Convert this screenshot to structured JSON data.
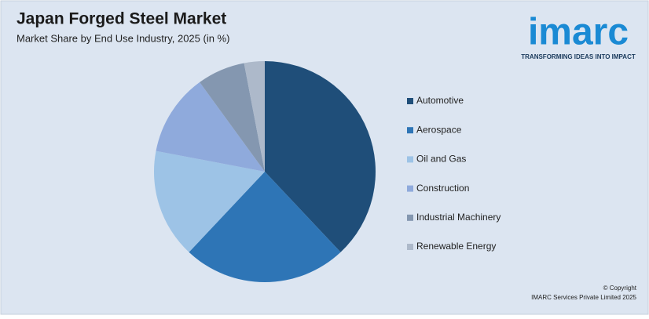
{
  "chart_data": {
    "type": "pie",
    "title": "Japan Forged Steel Market",
    "subtitle": "Market Share by End Use Industry, 2025 (in %)",
    "categories": [
      "Automotive",
      "Aerospace",
      "Oil and Gas",
      "Construction",
      "Industrial Machinery",
      "Renewable Energy"
    ],
    "values": [
      38,
      24,
      16,
      12,
      7,
      3
    ],
    "colors": [
      "#1f4e79",
      "#2e75b6",
      "#9dc3e6",
      "#8faadc",
      "#8497b0",
      "#adb9ca"
    ],
    "legend": "right"
  },
  "logo": {
    "name": "imarc",
    "tagline": "TRANSFORMING IDEAS INTO IMPACT"
  },
  "copyright": {
    "line1": "© Copyright",
    "line2": "IMARC Services Private Limited 2025"
  }
}
